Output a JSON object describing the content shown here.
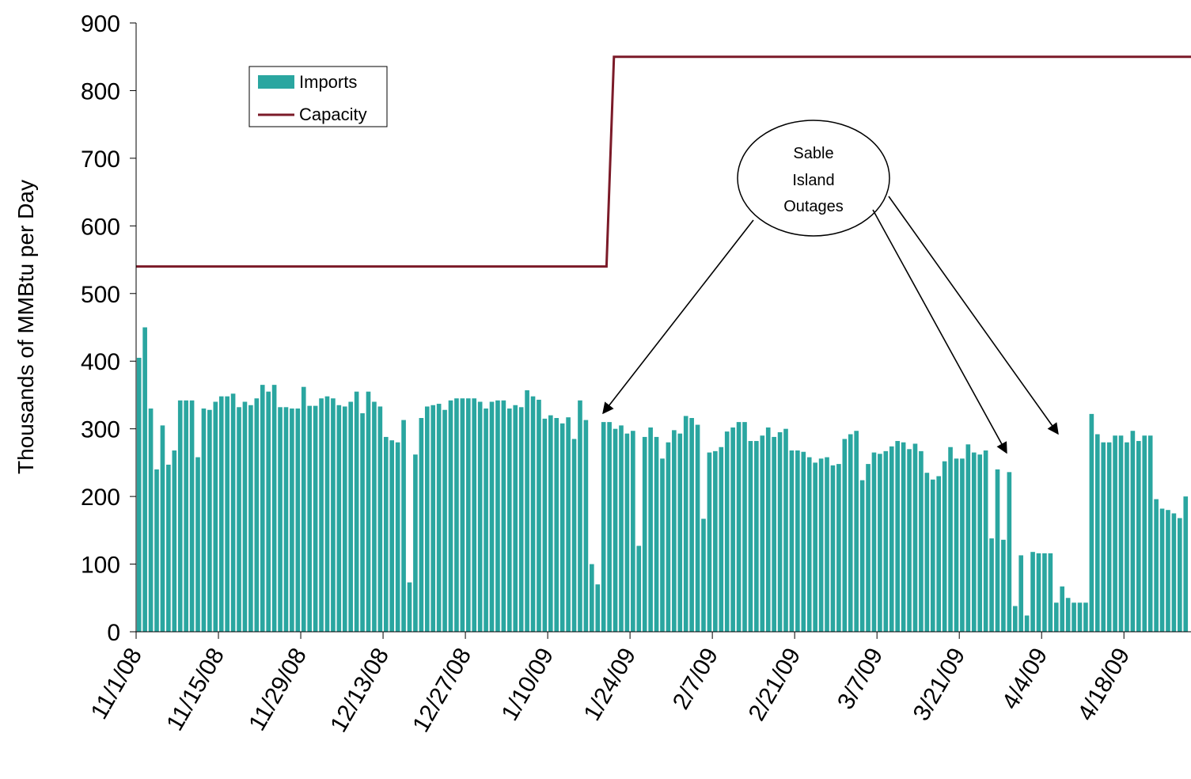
{
  "chart_data": {
    "type": "bar",
    "title": "",
    "xlabel": "",
    "ylabel": "Thousands of MMBtu per Day",
    "ylim": [
      0,
      900
    ],
    "yticks": [
      0,
      100,
      200,
      300,
      400,
      500,
      600,
      700,
      800,
      900
    ],
    "grid": false,
    "legend_position": "top-left",
    "x_start_date": "11/1/08",
    "x_tick_labels": [
      "11/1/08",
      "11/15/08",
      "11/29/08",
      "12/13/08",
      "12/27/08",
      "1/10/09",
      "1/24/09",
      "2/7/09",
      "2/21/09",
      "3/7/09",
      "3/21/09",
      "4/4/09",
      "4/18/09"
    ],
    "x_tick_days": [
      0,
      14,
      28,
      42,
      56,
      70,
      84,
      98,
      112,
      126,
      140,
      154,
      168
    ],
    "series": [
      {
        "name": "Imports",
        "type": "bar",
        "color": "#2aa6a0",
        "values": [
          405,
          450,
          330,
          240,
          305,
          247,
          268,
          342,
          342,
          342,
          258,
          330,
          328,
          340,
          348,
          348,
          352,
          332,
          340,
          335,
          345,
          365,
          355,
          365,
          332,
          332,
          330,
          330,
          362,
          334,
          334,
          345,
          348,
          345,
          335,
          333,
          340,
          355,
          323,
          355,
          340,
          333,
          288,
          283,
          280,
          313,
          73,
          262,
          316,
          333,
          335,
          337,
          328,
          342,
          345,
          345,
          345,
          345,
          340,
          330,
          340,
          342,
          342,
          330,
          335,
          332,
          357,
          348,
          343,
          315,
          320,
          316,
          308,
          317,
          285,
          342,
          313,
          100,
          70,
          310,
          310,
          300,
          305,
          293,
          297,
          127,
          288,
          302,
          288,
          256,
          280,
          298,
          293,
          319,
          316,
          306,
          167,
          265,
          267,
          273,
          296,
          302,
          310,
          310,
          282,
          282,
          290,
          302,
          288,
          295,
          300,
          268,
          268,
          266,
          258,
          250,
          256,
          258,
          246,
          248,
          285,
          292,
          297,
          224,
          248,
          265,
          263,
          267,
          274,
          282,
          280,
          270,
          278,
          267,
          235,
          225,
          230,
          252,
          273,
          256,
          256,
          277,
          265,
          262,
          268,
          138,
          240,
          136,
          236,
          38,
          113,
          24,
          118,
          116,
          116,
          116,
          43,
          67,
          50,
          43,
          43,
          43,
          322,
          292,
          280,
          280,
          290,
          290,
          280,
          297,
          282,
          290,
          290,
          196,
          182,
          180,
          175,
          168,
          200
        ]
      },
      {
        "name": "Capacity",
        "type": "step-line",
        "color": "#7b1a28",
        "steps": [
          {
            "from_day": 0,
            "to_day": 80,
            "value": 540
          },
          {
            "from_day": 81,
            "to_day": 179,
            "value": 850
          }
        ]
      }
    ],
    "annotations": [
      {
        "text_lines": [
          "Sable",
          "Island",
          "Outages"
        ],
        "points_to_days": [
          79,
          147,
          157
        ]
      }
    ]
  }
}
